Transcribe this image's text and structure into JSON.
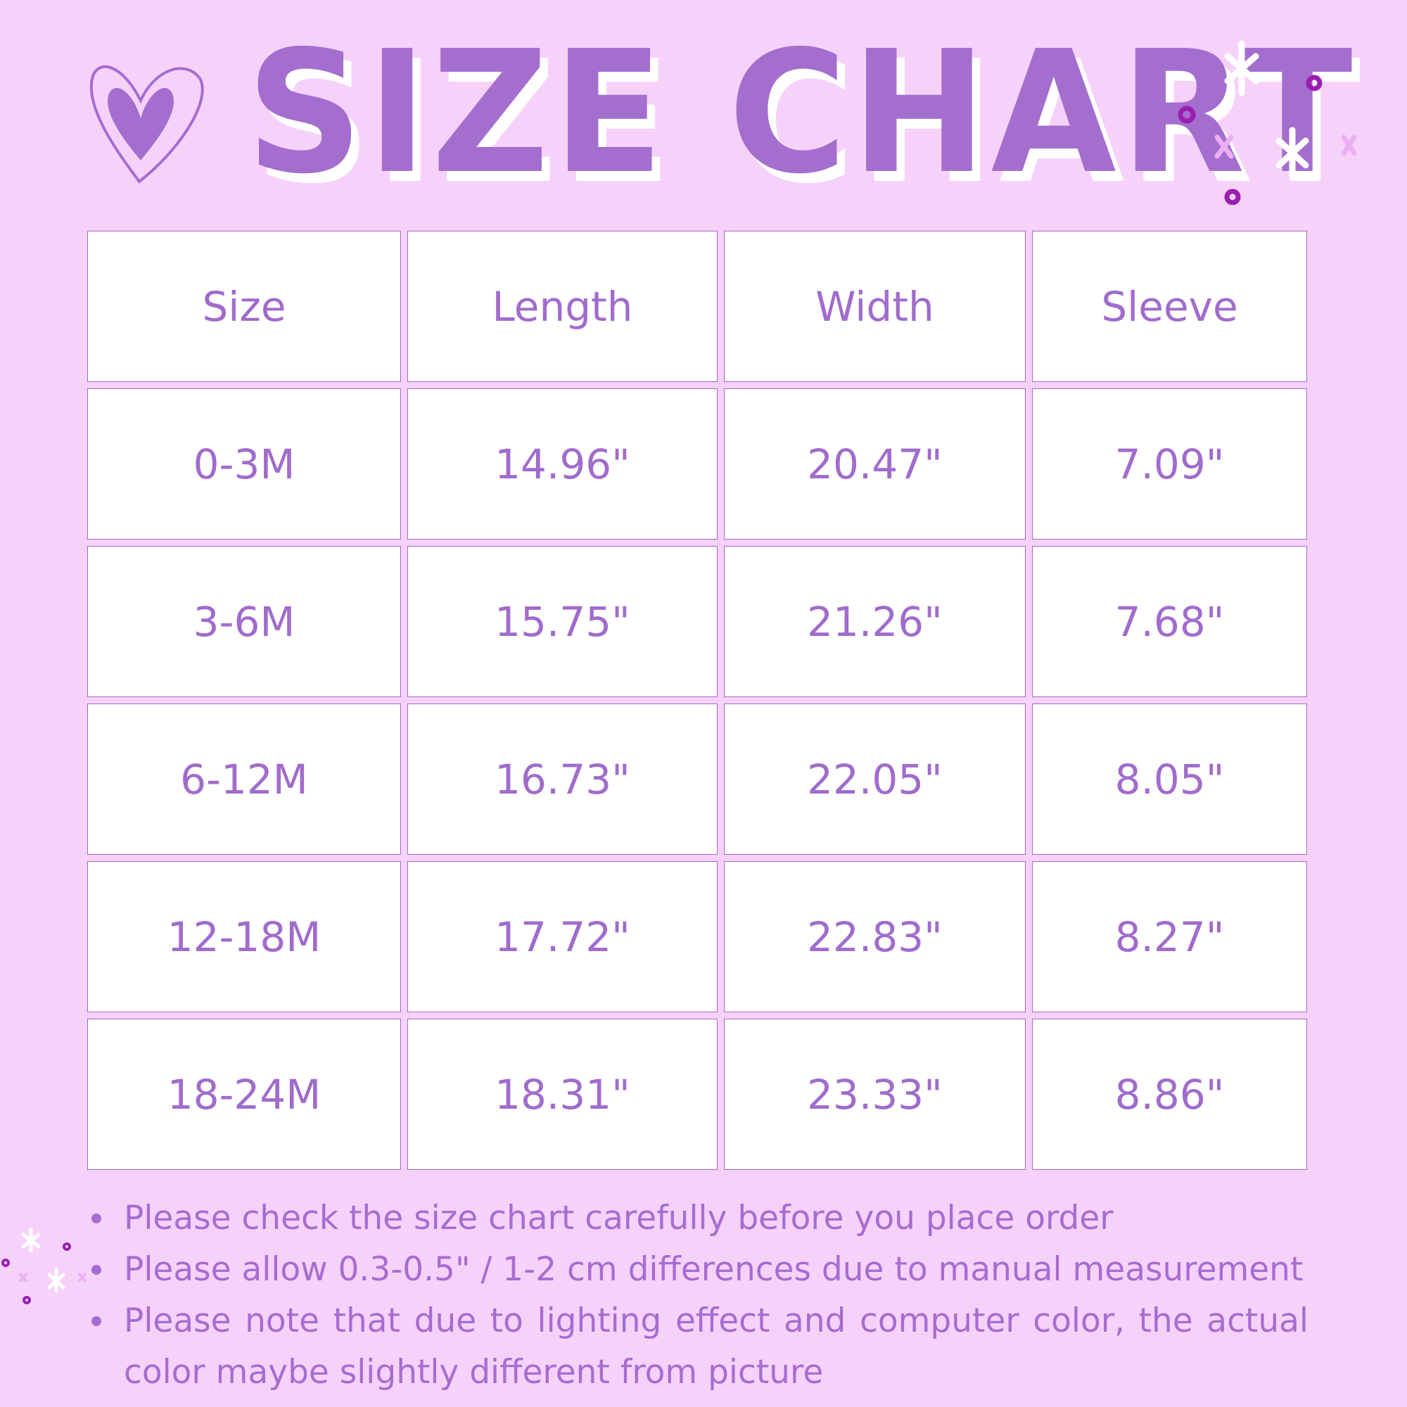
{
  "title": "SIZE CHART",
  "colors": {
    "background": "#f6d2fb",
    "accent": "#a46ecf",
    "dot": "#9a1fb0"
  },
  "icons": [
    "heart-icon",
    "sparkle-icon",
    "dot-icon"
  ],
  "table": {
    "headers": [
      "Size",
      "Length",
      "Width",
      "Sleeve"
    ],
    "rows": [
      [
        "0-3M",
        "14.96\"",
        "20.47\"",
        "7.09\""
      ],
      [
        "3-6M",
        "15.75\"",
        "21.26\"",
        "7.68\""
      ],
      [
        "6-12M",
        "16.73\"",
        "22.05\"",
        "8.05\""
      ],
      [
        "12-18M",
        "17.72\"",
        "22.83\"",
        "8.27\""
      ],
      [
        "18-24M",
        "18.31\"",
        "23.33\"",
        "8.86\""
      ]
    ]
  },
  "notes": [
    "Please check the size chart carefully before you place order",
    "Please allow 0.3-0.5\" / 1-2 cm differences due to manual measurement",
    "Please note that due to lighting effect and computer color, the actual color maybe slightly different from picture"
  ]
}
